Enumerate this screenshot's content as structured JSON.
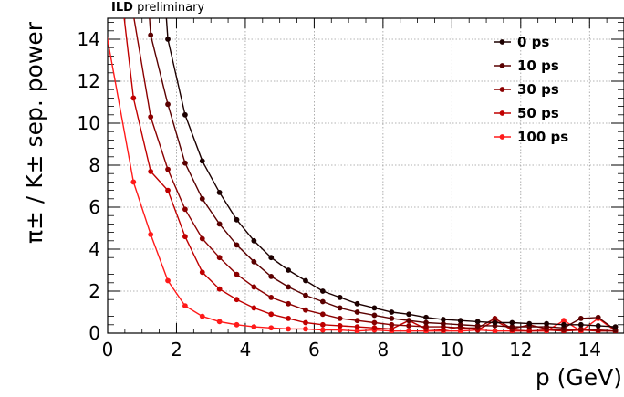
{
  "banner": {
    "experiment": "ILD",
    "status": "preliminary"
  },
  "chart_data": {
    "type": "line",
    "title": "",
    "xlabel": "p (GeV)",
    "ylabel": "π± / K± sep. power",
    "xlim": [
      0,
      15
    ],
    "ylim": [
      0,
      15
    ],
    "x_ticks": [
      0,
      2,
      4,
      6,
      8,
      10,
      12,
      14
    ],
    "y_ticks": [
      0,
      2,
      4,
      6,
      8,
      10,
      12,
      14
    ],
    "grid": true,
    "legend_position": "top-right",
    "series": [
      {
        "name": "0 ps",
        "color": "#1c0000",
        "x": [
          1.75,
          2.25,
          2.75,
          3.25,
          3.75,
          4.25,
          4.75,
          5.25,
          5.75,
          6.25,
          6.75,
          7.25,
          7.75,
          8.25,
          8.75,
          9.25,
          9.75,
          10.25,
          10.75,
          11.25,
          11.75,
          12.25,
          12.75,
          13.25,
          13.75,
          14.25,
          14.75
        ],
        "y": [
          14.0,
          10.4,
          8.2,
          6.7,
          5.4,
          4.4,
          3.6,
          3.0,
          2.5,
          2.0,
          1.7,
          1.4,
          1.2,
          1.0,
          0.9,
          0.75,
          0.65,
          0.6,
          0.55,
          0.5,
          0.5,
          0.45,
          0.45,
          0.4,
          0.4,
          0.35,
          0.3
        ]
      },
      {
        "name": "10 ps",
        "color": "#5a0000",
        "x": [
          1.25,
          1.75,
          2.25,
          2.75,
          3.25,
          3.75,
          4.25,
          4.75,
          5.25,
          5.75,
          6.25,
          6.75,
          7.25,
          7.75,
          8.25,
          8.75,
          9.25,
          9.75,
          10.25,
          10.75,
          11.25,
          11.75,
          12.25,
          12.75,
          13.25,
          13.75,
          14.25,
          14.75
        ],
        "y": [
          14.2,
          10.9,
          8.1,
          6.4,
          5.2,
          4.2,
          3.4,
          2.7,
          2.2,
          1.8,
          1.5,
          1.2,
          1.0,
          0.85,
          0.7,
          0.6,
          0.5,
          0.45,
          0.4,
          0.35,
          0.35,
          0.3,
          0.3,
          0.3,
          0.25,
          0.7,
          0.75,
          0.15
        ]
      },
      {
        "name": "30 ps",
        "color": "#8b0000",
        "x": [
          1.25,
          1.75,
          2.25,
          2.75,
          3.25,
          3.75,
          4.25,
          4.75,
          5.25,
          5.75,
          6.25,
          6.75,
          7.25,
          7.75,
          8.25,
          8.75,
          9.25,
          9.75,
          10.25,
          10.75,
          11.25,
          11.75,
          12.25,
          12.75,
          13.25,
          13.75,
          14.25,
          14.75
        ],
        "y": [
          10.3,
          7.8,
          5.9,
          4.5,
          3.6,
          2.8,
          2.2,
          1.7,
          1.4,
          1.1,
          0.9,
          0.7,
          0.6,
          0.5,
          0.4,
          0.35,
          0.3,
          0.3,
          0.25,
          0.25,
          0.7,
          0.2,
          0.4,
          0.2,
          0.15,
          0.2,
          0.15,
          0.1
        ]
      },
      {
        "name": "50 ps",
        "color": "#c00000",
        "x": [
          0.75,
          1.25,
          1.75,
          2.25,
          2.75,
          3.25,
          3.75,
          4.25,
          4.75,
          5.25,
          5.75,
          6.25,
          6.75,
          7.25,
          7.75,
          8.25,
          8.75,
          9.25,
          9.75,
          10.25,
          10.75,
          11.25,
          11.75,
          12.25,
          12.75,
          13.25,
          13.75,
          14.25,
          14.75
        ],
        "y": [
          11.2,
          7.7,
          6.8,
          4.6,
          2.9,
          2.1,
          1.6,
          1.2,
          0.9,
          0.7,
          0.5,
          0.4,
          0.35,
          0.3,
          0.25,
          0.2,
          0.6,
          0.2,
          0.15,
          0.3,
          0.15,
          0.6,
          0.15,
          0.1,
          0.15,
          0.1,
          0.15,
          0.1,
          0.1
        ]
      },
      {
        "name": "100 ps",
        "color": "#ff1a1a",
        "x": [
          0.75,
          1.25,
          1.75,
          2.25,
          2.75,
          3.25,
          3.75,
          4.25,
          4.75,
          5.25,
          5.75,
          6.25,
          6.75,
          7.25,
          7.75,
          8.25,
          8.75,
          9.25,
          9.75,
          10.25,
          10.75,
          11.25,
          11.75,
          12.25,
          12.75,
          13.25,
          13.75,
          14.25,
          14.75
        ],
        "y": [
          7.2,
          4.7,
          2.5,
          1.3,
          0.8,
          0.55,
          0.4,
          0.3,
          0.25,
          0.2,
          0.2,
          0.15,
          0.15,
          0.1,
          0.15,
          0.1,
          0.1,
          0.1,
          0.1,
          0.1,
          0.15,
          0.1,
          0.1,
          0.1,
          0.1,
          0.6,
          0.1,
          0.7,
          0.1
        ]
      }
    ]
  }
}
